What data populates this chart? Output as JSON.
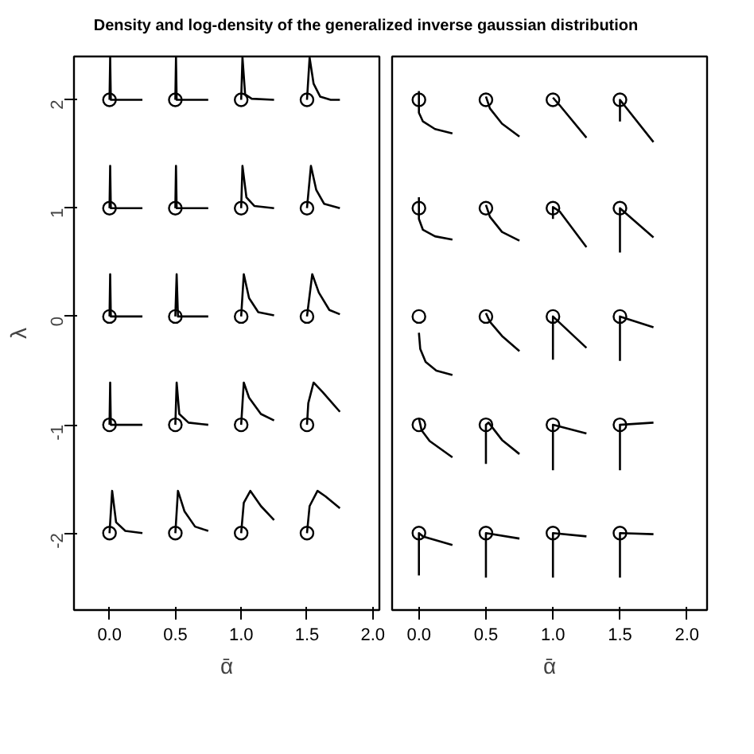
{
  "chart_data": [
    {
      "type": "line",
      "title": "Density and log-density of the generalized inverse gaussian distribution",
      "xlabel": "ᾱ",
      "ylabel": "λ",
      "xlim": [
        -0.27,
        2.05
      ],
      "ylim": [
        -2.71,
        2.4
      ],
      "xticks": [
        {
          "value": 0,
          "label": "0.0"
        },
        {
          "value": 0.5,
          "label": "0.5"
        },
        {
          "value": 1,
          "label": "1.0"
        },
        {
          "value": 1.5,
          "label": "1.5"
        },
        {
          "value": 2,
          "label": "2.0"
        }
      ],
      "yticks": [
        -2,
        -1,
        0,
        1,
        2
      ],
      "grid": false,
      "line_style": "solid",
      "series": [
        {
          "type": "scatter",
          "marker": "circle",
          "color": "#000000",
          "x": [
            0,
            0.5,
            1,
            1.5,
            0,
            0.5,
            1,
            1.5,
            0,
            0.5,
            1,
            1.5,
            0,
            0.5,
            1,
            1.5,
            0,
            0.5,
            1,
            1.5
          ],
          "values": [
            2,
            2,
            2,
            2,
            1,
            1,
            1,
            1,
            0,
            0,
            0,
            0,
            -1,
            -1,
            -1,
            -1,
            -2,
            -2,
            -2,
            -2
          ]
        },
        {
          "color": "#000000",
          "x": [
            0,
            0.005,
            0.01,
            0.25
          ],
          "values": [
            2,
            2.39,
            2,
            2
          ]
        },
        {
          "color": "#000000",
          "x": [
            0.5,
            0.505,
            0.51,
            0.75
          ],
          "values": [
            2,
            2.39,
            2,
            2
          ]
        },
        {
          "color": "#000000",
          "x": [
            1,
            1.01,
            1.03,
            1.08,
            1.25
          ],
          "values": [
            2,
            2.39,
            2.05,
            2.01,
            2
          ]
        },
        {
          "color": "#000000",
          "x": [
            1.5,
            1.52,
            1.55,
            1.6,
            1.68,
            1.75
          ],
          "values": [
            2,
            2.39,
            2.15,
            2.03,
            2,
            2
          ]
        },
        {
          "color": "#000000",
          "x": [
            0,
            0.005,
            0.01,
            0.25
          ],
          "values": [
            1,
            1.39,
            1,
            1
          ]
        },
        {
          "color": "#000000",
          "x": [
            0.5,
            0.505,
            0.51,
            0.75
          ],
          "values": [
            1,
            1.39,
            1,
            1
          ]
        },
        {
          "color": "#000000",
          "x": [
            1,
            1.01,
            1.04,
            1.1,
            1.25
          ],
          "values": [
            1,
            1.39,
            1.1,
            1.02,
            1
          ]
        },
        {
          "color": "#000000",
          "x": [
            1.5,
            1.53,
            1.57,
            1.63,
            1.75
          ],
          "values": [
            1,
            1.39,
            1.17,
            1.04,
            1
          ]
        },
        {
          "color": "#000000",
          "x": [
            0,
            0.005,
            0.01,
            0.25
          ],
          "values": [
            0,
            0.39,
            0,
            0
          ]
        },
        {
          "color": "#000000",
          "x": [
            0.5,
            0.51,
            0.52,
            0.75
          ],
          "values": [
            0,
            0.39,
            0,
            0
          ]
        },
        {
          "color": "#000000",
          "x": [
            1,
            1.02,
            1.06,
            1.13,
            1.25
          ],
          "values": [
            0,
            0.39,
            0.17,
            0.04,
            0.01
          ]
        },
        {
          "color": "#000000",
          "x": [
            1.5,
            1.54,
            1.59,
            1.67,
            1.75
          ],
          "values": [
            0,
            0.39,
            0.22,
            0.06,
            0.02
          ]
        },
        {
          "color": "#000000",
          "x": [
            0,
            0.005,
            0.01,
            0.25
          ],
          "values": [
            -1,
            -0.61,
            -1,
            -1
          ]
        },
        {
          "color": "#000000",
          "x": [
            0.5,
            0.51,
            0.53,
            0.6,
            0.75
          ],
          "values": [
            -1,
            -0.61,
            -0.9,
            -0.98,
            -1
          ]
        },
        {
          "color": "#000000",
          "x": [
            1,
            1.02,
            1.06,
            1.15,
            1.25
          ],
          "values": [
            -1,
            -0.61,
            -0.75,
            -0.9,
            -0.96
          ]
        },
        {
          "color": "#000000",
          "x": [
            1.5,
            1.51,
            1.55,
            1.62,
            1.75
          ],
          "values": [
            -1,
            -0.8,
            -0.61,
            -0.7,
            -0.88
          ]
        },
        {
          "color": "#000000",
          "x": [
            0,
            0.02,
            0.05,
            0.12,
            0.25
          ],
          "values": [
            -2,
            -1.61,
            -1.9,
            -1.98,
            -2
          ]
        },
        {
          "color": "#000000",
          "x": [
            0.5,
            0.52,
            0.57,
            0.65,
            0.75
          ],
          "values": [
            -2,
            -1.61,
            -1.8,
            -1.94,
            -1.98
          ]
        },
        {
          "color": "#000000",
          "x": [
            1,
            1.02,
            1.07,
            1.15,
            1.25
          ],
          "values": [
            -2,
            -1.72,
            -1.61,
            -1.75,
            -1.88
          ]
        },
        {
          "color": "#000000",
          "x": [
            1.5,
            1.52,
            1.58,
            1.64,
            1.75
          ],
          "values": [
            -2,
            -1.75,
            -1.61,
            -1.66,
            -1.77
          ]
        }
      ]
    },
    {
      "type": "line",
      "xlabel": "ᾱ",
      "xlim": [
        -0.2,
        2.15
      ],
      "ylim": [
        -2.71,
        2.4
      ],
      "xticks": [
        {
          "value": 0,
          "label": "0.0"
        },
        {
          "value": 0.5,
          "label": "0.5"
        },
        {
          "value": 1,
          "label": "1.0"
        },
        {
          "value": 1.5,
          "label": "1.5"
        },
        {
          "value": 2,
          "label": "2.0"
        }
      ],
      "tick_labels": "x",
      "grid": false,
      "line_style": "solid",
      "series": [
        {
          "type": "scatter",
          "marker": "circle",
          "color": "#000000",
          "x": [
            0,
            0.5,
            1,
            1.5,
            0,
            0.5,
            1,
            1.5,
            0,
            0.5,
            1,
            1.5,
            0,
            0.5,
            1,
            1.5,
            0,
            0.5,
            1,
            1.5
          ],
          "values": [
            2,
            2,
            2,
            2,
            1,
            1,
            1,
            1,
            0,
            0,
            0,
            0,
            -1,
            -1,
            -1,
            -1,
            -2,
            -2,
            -2,
            -2
          ]
        },
        {
          "color": "#000000",
          "x": [
            0,
            0,
            0.03,
            0.12,
            0.25
          ],
          "values": [
            2.08,
            1.88,
            1.8,
            1.73,
            1.69
          ]
        },
        {
          "color": "#000000",
          "x": [
            0.5,
            0.53,
            0.62,
            0.75
          ],
          "values": [
            2.03,
            1.92,
            1.78,
            1.66
          ]
        },
        {
          "color": "#000000",
          "x": [
            1,
            1.05,
            1.25
          ],
          "values": [
            2.02,
            1.95,
            1.65
          ]
        },
        {
          "color": "#000000",
          "x": [
            1.5,
            1.5,
            1.75
          ],
          "values": [
            1.8,
            2,
            1.61
          ]
        },
        {
          "color": "#000000",
          "x": [
            0,
            0,
            0.03,
            0.12,
            0.25
          ],
          "values": [
            1.1,
            0.9,
            0.8,
            0.74,
            0.71
          ]
        },
        {
          "color": "#000000",
          "x": [
            0.5,
            0.53,
            0.62,
            0.75
          ],
          "values": [
            1.03,
            0.92,
            0.78,
            0.7
          ]
        },
        {
          "color": "#000000",
          "x": [
            1,
            1,
            1.05,
            1.25
          ],
          "values": [
            0.9,
            1.01,
            0.97,
            0.64
          ]
        },
        {
          "color": "#000000",
          "x": [
            1.5,
            1.5,
            1.75
          ],
          "values": [
            0.59,
            1,
            0.73
          ]
        },
        {
          "color": "#000000",
          "x": [
            0,
            0.01,
            0.05,
            0.13,
            0.25
          ],
          "values": [
            -0.15,
            -0.3,
            -0.42,
            -0.5,
            -0.54
          ]
        },
        {
          "color": "#000000",
          "x": [
            0.5,
            0.53,
            0.62,
            0.75
          ],
          "values": [
            0.03,
            -0.05,
            -0.18,
            -0.32
          ]
        },
        {
          "color": "#000000",
          "x": [
            1,
            1,
            1.25
          ],
          "values": [
            -0.4,
            0,
            -0.29
          ]
        },
        {
          "color": "#000000",
          "x": [
            1.5,
            1.5,
            1.75
          ],
          "values": [
            -0.41,
            0,
            -0.1
          ]
        },
        {
          "color": "#000000",
          "x": [
            0,
            0.02,
            0.08,
            0.25
          ],
          "values": [
            -0.94,
            -1.05,
            -1.15,
            -1.3
          ]
        },
        {
          "color": "#000000",
          "x": [
            0.5,
            0.5,
            0.52,
            0.62,
            0.75
          ],
          "values": [
            -1.36,
            -1,
            -0.98,
            -1.14,
            -1.27
          ]
        },
        {
          "color": "#000000",
          "x": [
            1,
            1,
            1.25
          ],
          "values": [
            -1.42,
            -1,
            -1.08
          ]
        },
        {
          "color": "#000000",
          "x": [
            1.5,
            1.5,
            1.75
          ],
          "values": [
            -1.42,
            -1,
            -0.98
          ]
        },
        {
          "color": "#000000",
          "x": [
            0,
            0,
            0.03,
            0.25
          ],
          "values": [
            -2.39,
            -2,
            -2.03,
            -2.11
          ]
        },
        {
          "color": "#000000",
          "x": [
            0.5,
            0.5,
            0.75
          ],
          "values": [
            -2.41,
            -2,
            -2.05
          ]
        },
        {
          "color": "#000000",
          "x": [
            1,
            1,
            1.25
          ],
          "values": [
            -2.41,
            -2,
            -2.03
          ]
        },
        {
          "color": "#000000",
          "x": [
            1.5,
            1.5,
            1.75
          ],
          "values": [
            -2.41,
            -2,
            -2.01
          ]
        }
      ]
    }
  ]
}
